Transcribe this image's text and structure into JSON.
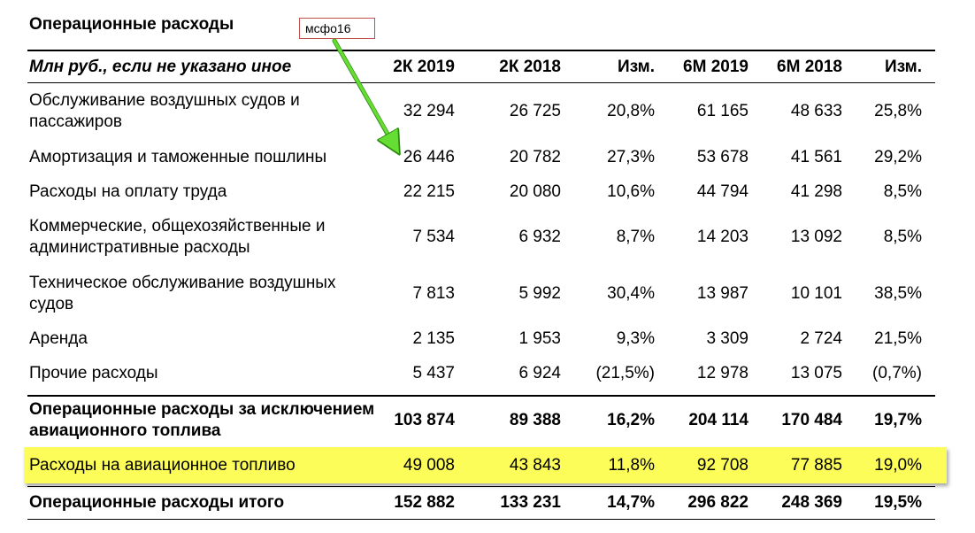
{
  "title": "Операционные расходы",
  "callout": "мсфо16",
  "header": {
    "label": "Млн руб., если не указано иное",
    "cols": [
      "2К 2019",
      "2К 2018",
      "Изм.",
      "6М 2019",
      "6М 2018",
      "Изм."
    ]
  },
  "rows": [
    {
      "label": "Обслуживание воздушных судов и пассажиров",
      "values": [
        "32 294",
        "26 725",
        "20,8%",
        "61 165",
        "48 633",
        "25,8%"
      ]
    },
    {
      "label": "Амортизация и таможенные пошлины",
      "values": [
        "26 446",
        "20 782",
        "27,3%",
        "53 678",
        "41 561",
        "29,2%"
      ]
    },
    {
      "label": "Расходы на оплату труда",
      "values": [
        "22 215",
        "20 080",
        "10,6%",
        "44 794",
        "41 298",
        "8,5%"
      ]
    },
    {
      "label": "Коммерческие, общехозяйственные и административные расходы",
      "values": [
        "7 534",
        "6 932",
        "8,7%",
        "14 203",
        "13 092",
        "8,5%"
      ]
    },
    {
      "label": "Техническое обслуживание воздушных судов",
      "values": [
        "7 813",
        "5 992",
        "30,4%",
        "13 987",
        "10 101",
        "38,5%"
      ]
    },
    {
      "label": "Аренда",
      "values": [
        "2 135",
        "1 953",
        "9,3%",
        "3 309",
        "2 724",
        "21,5%"
      ]
    },
    {
      "label": "Прочие расходы",
      "values": [
        "5 437",
        "6 924",
        "(21,5%)",
        "12 978",
        "13 075",
        "(0,7%)"
      ]
    }
  ],
  "subtotal": {
    "label": "Операционные расходы за исключением авиационного топлива",
    "values": [
      "103 874",
      "89 388",
      "16,2%",
      "204 114",
      "170 484",
      "19,7%"
    ]
  },
  "fuel": {
    "label": "Расходы на авиационное топливо",
    "values": [
      "49 008",
      "43 843",
      "11,8%",
      "92 708",
      "77 885",
      "19,0%"
    ]
  },
  "total": {
    "label": "Операционные расходы итого",
    "values": [
      "152 882",
      "133 231",
      "14,7%",
      "296 822",
      "248 369",
      "19,5%"
    ]
  },
  "colors": {
    "highlight": "#fdfd5a",
    "arrow": "#66dd33",
    "callout_border": "#c0504d"
  }
}
